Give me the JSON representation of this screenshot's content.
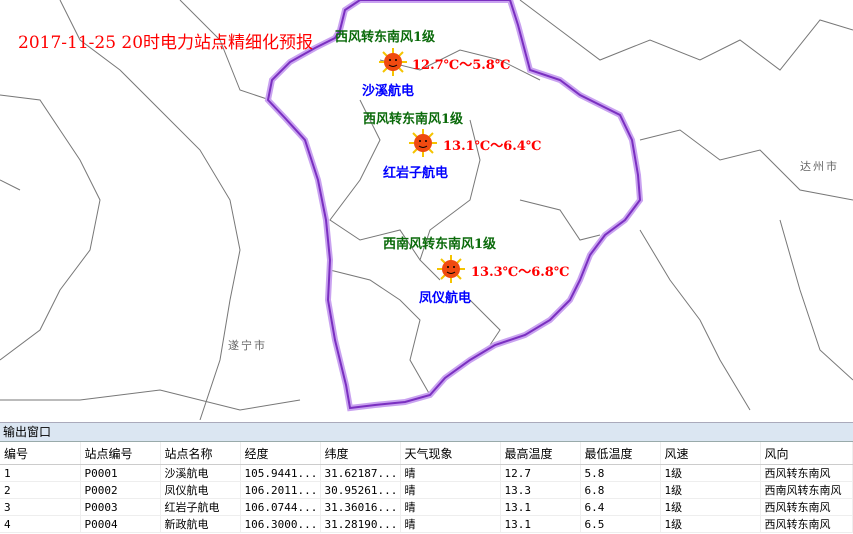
{
  "map": {
    "title": "2017-11-25 20时电力站点精细化预报",
    "cities": [
      "达州市",
      "遂宁市"
    ],
    "stations": [
      {
        "wind": "西风转东南风1级",
        "temp": "12.7℃～5.8℃",
        "name": "沙溪航电",
        "icon": "sun-icon"
      },
      {
        "wind": "西风转东南风1级",
        "temp": "13.1℃～6.4℃",
        "name": "红岩子航电",
        "icon": "sun-icon"
      },
      {
        "wind": "西南风转东南风1级",
        "temp": "13.3℃～6.8℃",
        "name": "凤仪航电",
        "icon": "sun-icon"
      }
    ],
    "colors": {
      "boundary": "#9b4ddb",
      "title": "#ff0000",
      "wind": "#0a6a0a",
      "temp": "#ff0000",
      "name": "#0000ff"
    }
  },
  "output": {
    "title": "输出窗口",
    "headers": [
      "编号",
      "站点编号",
      "站点名称",
      "经度",
      "纬度",
      "天气现象",
      "最高温度",
      "最低温度",
      "风速",
      "风向"
    ],
    "rows": [
      [
        "1",
        "P0001",
        "沙溪航电",
        "105.9441...",
        "31.62187...",
        "晴",
        "12.7",
        "5.8",
        "1级",
        "西风转东南风"
      ],
      [
        "2",
        "P0002",
        "凤仪航电",
        "106.2011...",
        "30.95261...",
        "晴",
        "13.3",
        "6.8",
        "1级",
        "西南风转东南风"
      ],
      [
        "3",
        "P0003",
        "红岩子航电",
        "106.0744...",
        "31.36016...",
        "晴",
        "13.1",
        "6.4",
        "1级",
        "西风转东南风"
      ],
      [
        "4",
        "P0004",
        "新政航电",
        "106.3000...",
        "31.28190...",
        "晴",
        "13.1",
        "6.5",
        "1级",
        "西风转东南风"
      ]
    ]
  }
}
